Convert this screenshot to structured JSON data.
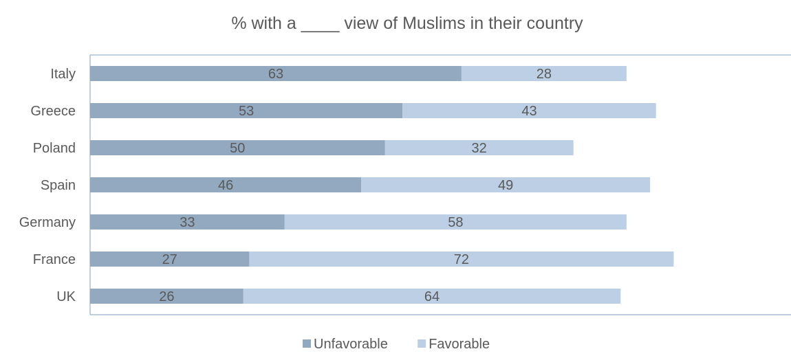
{
  "chart_data": {
    "type": "bar",
    "orientation": "horizontal",
    "stacked": true,
    "title": "% with a ____ view of Muslims in their country",
    "categories": [
      "Italy",
      "Greece",
      "Poland",
      "Spain",
      "Germany",
      "France",
      "UK"
    ],
    "series": [
      {
        "name": "Unfavorable",
        "color": "#92a9c0",
        "values": [
          63,
          53,
          50,
          46,
          33,
          27,
          26
        ]
      },
      {
        "name": "Favorable",
        "color": "#bccfe4",
        "values": [
          28,
          43,
          32,
          49,
          58,
          72,
          64
        ]
      }
    ],
    "xlim": [
      0,
      120
    ],
    "grid": false,
    "legend": "bottom",
    "data_labels": true
  }
}
